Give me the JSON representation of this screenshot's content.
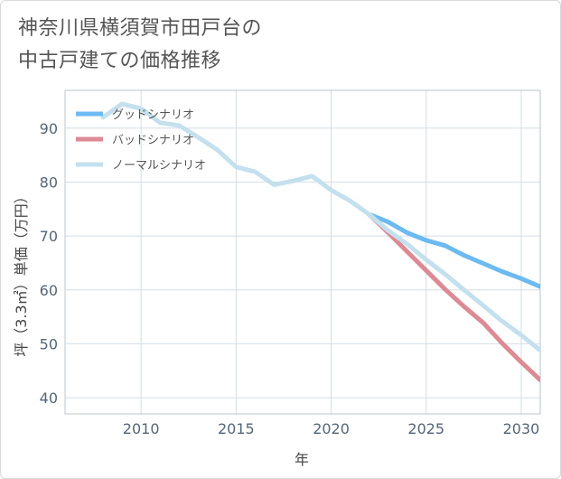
{
  "title_lines": [
    "神奈川県横須賀市田戸台の",
    "中古戸建ての価格推移"
  ],
  "chart_data": {
    "type": "line",
    "title": "神奈川県横須賀市田戸台の中古戸建ての価格推移",
    "xlabel": "年",
    "ylabel": "坪（3.3㎡）単価（万円）",
    "xlim": [
      2006,
      2031
    ],
    "ylim": [
      37,
      97
    ],
    "x_ticks": [
      2010,
      2015,
      2020,
      2025,
      2030
    ],
    "y_ticks": [
      40,
      50,
      60,
      70,
      80,
      90
    ],
    "grid": true,
    "legend_position": "top-left",
    "series": [
      {
        "name": "グッドシナリオ",
        "color": "#6cbaf0",
        "x": [
          2022,
          2023,
          2024,
          2025,
          2026,
          2027,
          2028,
          2029,
          2030,
          2031
        ],
        "y": [
          74.0,
          72.6,
          70.6,
          69.2,
          68.2,
          66.4,
          64.9,
          63.4,
          62.1,
          60.6
        ]
      },
      {
        "name": "バッドシナリオ",
        "color": "#dc8a94",
        "x": [
          2022,
          2023,
          2024,
          2025,
          2026,
          2027,
          2028,
          2029,
          2030,
          2031
        ],
        "y": [
          74.0,
          70.6,
          67.1,
          63.6,
          60.1,
          56.9,
          53.9,
          50.1,
          46.6,
          43.3
        ]
      },
      {
        "name": "ノーマルシナリオ",
        "color": "#c4e0ee",
        "x": [
          2008,
          2009,
          2010,
          2011,
          2012,
          2013,
          2014,
          2015,
          2016,
          2017,
          2018,
          2019,
          2020,
          2021,
          2022,
          2023,
          2024,
          2025,
          2026,
          2027,
          2028,
          2029,
          2030,
          2031
        ],
        "y": [
          92.0,
          94.5,
          93.6,
          91.0,
          90.5,
          88.3,
          86.0,
          82.8,
          81.9,
          79.5,
          80.2,
          81.1,
          78.5,
          76.5,
          74.0,
          71.0,
          68.5,
          65.6,
          62.9,
          60.0,
          57.1,
          54.2,
          51.6,
          48.8
        ]
      }
    ]
  }
}
